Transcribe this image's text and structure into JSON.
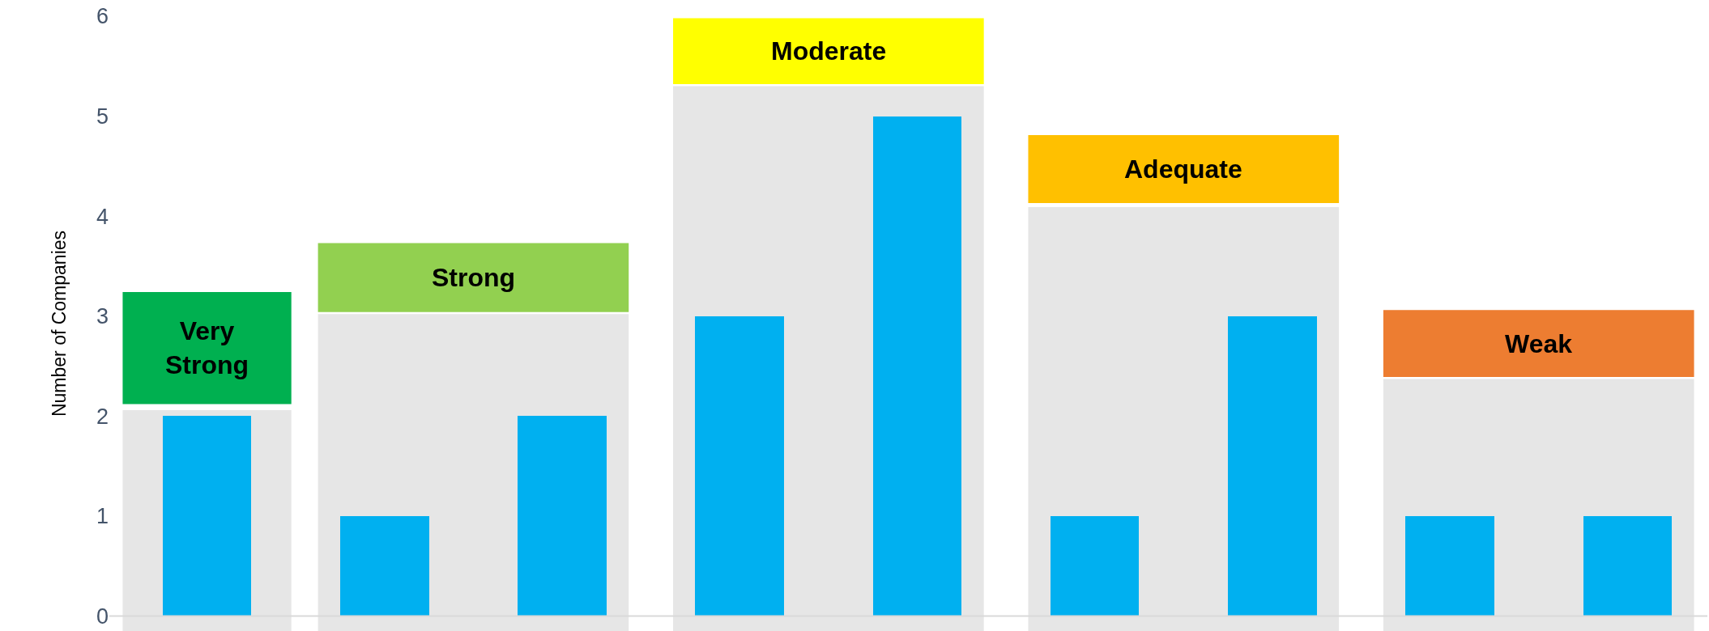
{
  "chart_data": {
    "type": "bar",
    "ylabel": "Number of Companies",
    "categories": [
      null,
      null,
      null,
      null,
      null,
      null,
      null,
      null,
      null
    ],
    "values": [
      2,
      1,
      2,
      3,
      5,
      1,
      3,
      1,
      1
    ],
    "color": "#00b0f0",
    "ylim": [
      -0.15,
      6
    ],
    "yticks": [
      0,
      1,
      2,
      3,
      4,
      5,
      6
    ],
    "tick_labels": "y",
    "grid": false,
    "ref_lines": [
      {
        "axis": "y",
        "value": 0,
        "color": "#d9d9d9"
      }
    ],
    "annotations": [
      "Very\nStrong",
      "Strong",
      "Moderate",
      "Adequate",
      "Weak"
    ]
  }
}
